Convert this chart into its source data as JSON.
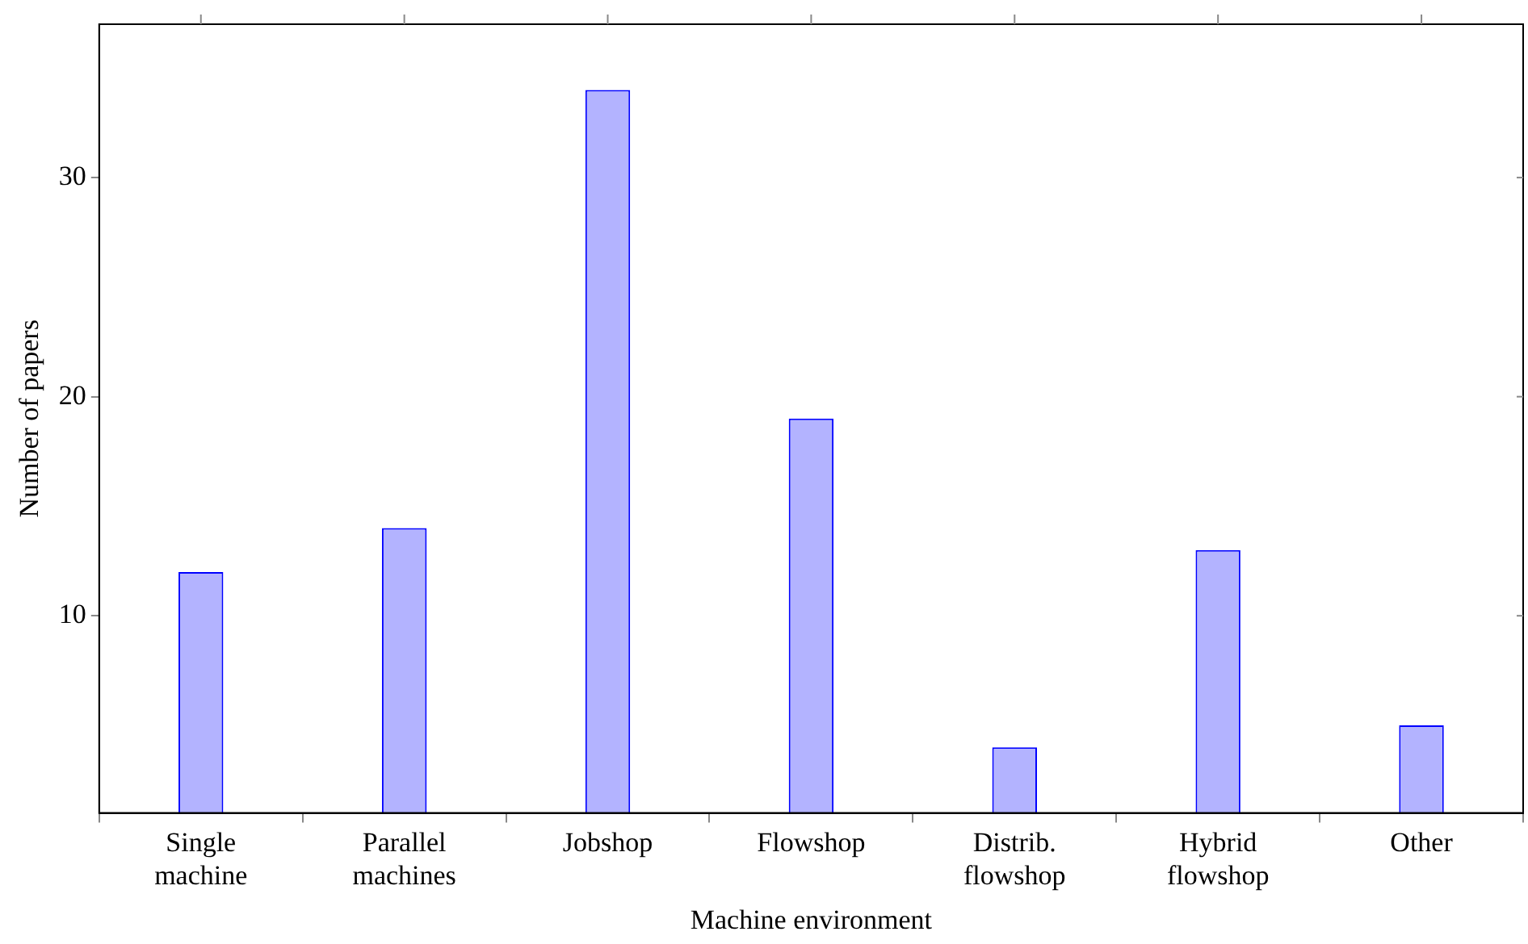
{
  "chart_data": {
    "type": "bar",
    "xlabel": "Machine environment",
    "ylabel": "Number of papers",
    "categories": [
      "Single machine",
      "Parallel machines",
      "Jobshop",
      "Flowshop",
      "Distrib. flowshop",
      "Hybrid flowshop",
      "Other"
    ],
    "series": [
      {
        "color": "#b3b3ff",
        "values": [
          12,
          14,
          34,
          19,
          4,
          13,
          5
        ]
      }
    ],
    "ylim": [
      1,
      37
    ],
    "yticks": [
      10,
      20,
      30
    ],
    "grid": false,
    "legend": false
  }
}
